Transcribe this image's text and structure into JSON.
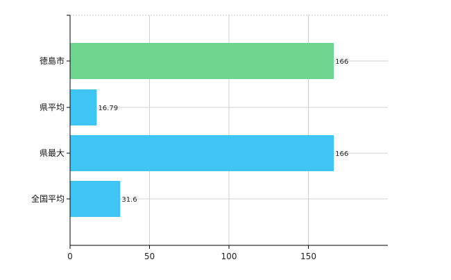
{
  "chart_data": {
    "type": "bar",
    "orientation": "horizontal",
    "categories": [
      "徳島市",
      "県平均",
      "県最大",
      "全国平均"
    ],
    "values": [
      166,
      16.79,
      166,
      31.6
    ],
    "value_labels": [
      "166",
      "16.79",
      "166",
      "31.6"
    ],
    "colors": [
      "#6ed48e",
      "#3ec5f5",
      "#3ec5f5",
      "#3ec5f5"
    ],
    "x_ticks": [
      "0",
      "50",
      "100",
      "150"
    ],
    "xlim": [
      0,
      200
    ],
    "grid": true,
    "title": "",
    "xlabel": "",
    "ylabel": ""
  }
}
